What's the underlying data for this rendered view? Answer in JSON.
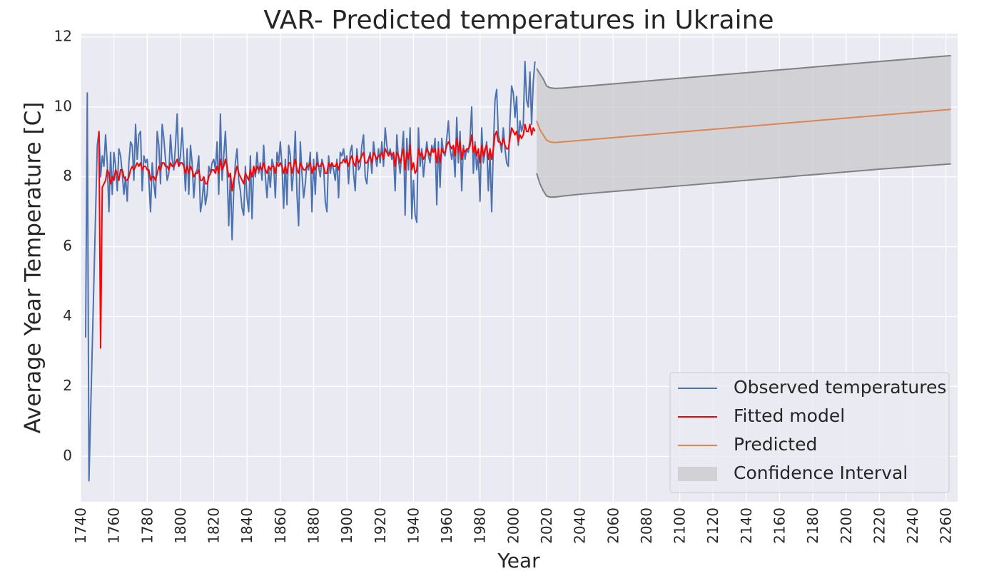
{
  "chart_data": {
    "type": "line",
    "title": "VAR- Predicted temperatures in Ukraine",
    "xlabel": "Year",
    "ylabel": "Average Year Temperature [C]",
    "xlim": [
      1740,
      2267
    ],
    "ylim": [
      -1.3,
      12.1
    ],
    "xticks": [
      1740,
      1760,
      1780,
      1800,
      1820,
      1840,
      1860,
      1880,
      1900,
      1920,
      1940,
      1960,
      1980,
      2000,
      2020,
      2040,
      2060,
      2080,
      2100,
      2120,
      2140,
      2160,
      2180,
      2200,
      2220,
      2240,
      2260
    ],
    "yticks": [
      0,
      2,
      4,
      6,
      8,
      10,
      12
    ],
    "grid": true,
    "legend": "lower right",
    "series": [
      {
        "name": "Observed temperatures",
        "color": "#4c72b0",
        "x": [
          1743,
          1744,
          1745,
          1750,
          1751,
          1752,
          1753,
          1754,
          1755,
          1756,
          1757,
          1758,
          1759,
          1760,
          1761,
          1762,
          1763,
          1764,
          1765,
          1766,
          1767,
          1768,
          1769,
          1770,
          1771,
          1772,
          1773,
          1774,
          1775,
          1776,
          1777,
          1778,
          1779,
          1780,
          1781,
          1782,
          1783,
          1784,
          1785,
          1786,
          1787,
          1788,
          1789,
          1790,
          1791,
          1792,
          1793,
          1794,
          1795,
          1796,
          1797,
          1798,
          1799,
          1800,
          1801,
          1802,
          1803,
          1804,
          1805,
          1806,
          1807,
          1808,
          1809,
          1810,
          1811,
          1812,
          1813,
          1814,
          1815,
          1816,
          1817,
          1818,
          1819,
          1820,
          1821,
          1822,
          1823,
          1824,
          1825,
          1826,
          1827,
          1828,
          1829,
          1830,
          1831,
          1832,
          1833,
          1834,
          1835,
          1836,
          1837,
          1838,
          1839,
          1840,
          1841,
          1842,
          1843,
          1844,
          1845,
          1846,
          1847,
          1848,
          1849,
          1850,
          1851,
          1852,
          1853,
          1854,
          1855,
          1856,
          1857,
          1858,
          1859,
          1860,
          1861,
          1862,
          1863,
          1864,
          1865,
          1866,
          1867,
          1868,
          1869,
          1870,
          1871,
          1872,
          1873,
          1874,
          1875,
          1876,
          1877,
          1878,
          1879,
          1880,
          1881,
          1882,
          1883,
          1884,
          1885,
          1886,
          1887,
          1888,
          1889,
          1890,
          1891,
          1892,
          1893,
          1894,
          1895,
          1896,
          1897,
          1898,
          1899,
          1900,
          1901,
          1902,
          1903,
          1904,
          1905,
          1906,
          1907,
          1908,
          1909,
          1910,
          1911,
          1912,
          1913,
          1914,
          1915,
          1916,
          1917,
          1918,
          1919,
          1920,
          1921,
          1922,
          1923,
          1924,
          1925,
          1926,
          1927,
          1928,
          1929,
          1930,
          1931,
          1932,
          1933,
          1934,
          1935,
          1936,
          1937,
          1938,
          1939,
          1940,
          1941,
          1942,
          1943,
          1944,
          1945,
          1946,
          1947,
          1948,
          1949,
          1950,
          1951,
          1952,
          1953,
          1954,
          1955,
          1956,
          1957,
          1958,
          1959,
          1960,
          1961,
          1962,
          1963,
          1964,
          1965,
          1966,
          1967,
          1968,
          1969,
          1970,
          1971,
          1972,
          1973,
          1974,
          1975,
          1976,
          1977,
          1978,
          1979,
          1980,
          1981,
          1982,
          1983,
          1984,
          1985,
          1986,
          1987,
          1988,
          1989,
          1990,
          1991,
          1992,
          1993,
          1994,
          1995,
          1996,
          1997,
          1998,
          1999,
          2000,
          2001,
          2002,
          2003,
          2004,
          2005,
          2006,
          2007,
          2008,
          2009,
          2010,
          2011,
          2012,
          2013
        ],
        "values": [
          3.4,
          10.4,
          -0.7,
          8.9,
          9.3,
          8.0,
          8.6,
          8.3,
          9.2,
          8.4,
          7.0,
          8.7,
          7.5,
          8.7,
          8.3,
          7.6,
          8.8,
          8.6,
          8.1,
          7.5,
          8.0,
          7.3,
          8.4,
          9.0,
          8.9,
          7.9,
          9.5,
          8.5,
          9.2,
          9.3,
          7.6,
          8.6,
          8.4,
          8.5,
          7.9,
          7.0,
          8.4,
          7.8,
          7.4,
          9.3,
          8.9,
          7.8,
          9.5,
          9.1,
          8.5,
          7.9,
          8.1,
          9.2,
          8.5,
          8.2,
          8.9,
          9.8,
          8.3,
          8.6,
          9.4,
          8.5,
          7.6,
          8.8,
          7.5,
          8.9,
          8.4,
          7.4,
          8.1,
          8.2,
          8.6,
          7.0,
          7.3,
          7.9,
          7.2,
          7.5,
          8.3,
          8.1,
          8.4,
          8.5,
          8.2,
          9.0,
          7.5,
          9.8,
          7.9,
          8.6,
          9.3,
          8.2,
          6.6,
          8.1,
          6.2,
          7.6,
          8.4,
          8.8,
          7.9,
          7.6,
          7.1,
          6.9,
          8.3,
          7.4,
          7.0,
          8.6,
          6.8,
          8.3,
          8.0,
          8.7,
          8.1,
          8.4,
          7.9,
          8.9,
          8.0,
          7.4,
          8.2,
          7.7,
          8.5,
          8.3,
          7.4,
          8.7,
          8.4,
          9.0,
          8.3,
          7.1,
          8.5,
          7.2,
          8.9,
          8.6,
          7.6,
          8.2,
          9.3,
          7.5,
          6.6,
          9.0,
          8.1,
          7.4,
          7.8,
          8.4,
          8.2,
          8.7,
          7.0,
          8.5,
          7.5,
          8.7,
          8.3,
          8.0,
          8.5,
          8.3,
          7.3,
          7.0,
          8.6,
          8.1,
          8.4,
          8.2,
          7.9,
          8.5,
          7.4,
          8.7,
          8.6,
          8.8,
          8.4,
          8.6,
          7.8,
          8.7,
          8.9,
          8.1,
          7.6,
          8.8,
          8.2,
          8.3,
          8.9,
          9.2,
          8.0,
          7.8,
          8.5,
          8.7,
          8.1,
          9.0,
          8.6,
          8.3,
          8.8,
          8.4,
          9.0,
          8.3,
          9.4,
          8.9,
          8.6,
          8.8,
          8.5,
          8.6,
          7.6,
          9.2,
          8.5,
          8.1,
          8.7,
          9.3,
          6.9,
          9.1,
          8.2,
          9.4,
          6.8,
          7.9,
          6.9,
          6.7,
          9.4,
          8.3,
          8.8,
          8.0,
          8.5,
          9.0,
          8.6,
          8.4,
          8.9,
          8.7,
          9.1,
          7.2,
          9.0,
          7.7,
          9.1,
          8.7,
          8.6,
          9.1,
          9.6,
          8.8,
          8.5,
          8.8,
          8.0,
          9.7,
          8.4,
          9.3,
          7.6,
          8.9,
          8.5,
          8.8,
          8.7,
          9.1,
          10.0,
          8.1,
          9.0,
          8.2,
          8.6,
          7.3,
          9.4,
          8.4,
          8.7,
          9.0,
          7.6,
          8.7,
          7.0,
          8.8,
          10.2,
          10.5,
          9.2,
          9.0,
          8.7,
          9.4,
          8.8,
          8.4,
          8.3,
          9.6,
          10.6,
          10.4,
          9.7,
          10.3,
          8.9,
          9.6,
          9.3,
          9.5,
          11.3,
          10.2,
          10.0,
          11.0,
          9.5,
          10.7,
          11.3
        ]
      },
      {
        "name": "Fitted model",
        "color": "#ff0000",
        "x": [
          1751,
          1752,
          1753,
          1754,
          1755,
          1756,
          1757,
          1758,
          1759,
          1760,
          1761,
          1762,
          1763,
          1764,
          1765,
          1766,
          1767,
          1768,
          1769,
          1770,
          1771,
          1772,
          1773,
          1774,
          1775,
          1776,
          1777,
          1778,
          1779,
          1780,
          1781,
          1782,
          1783,
          1784,
          1785,
          1786,
          1787,
          1788,
          1789,
          1790,
          1791,
          1792,
          1793,
          1794,
          1795,
          1796,
          1797,
          1798,
          1799,
          1800,
          1801,
          1802,
          1803,
          1804,
          1805,
          1806,
          1807,
          1808,
          1809,
          1810,
          1811,
          1812,
          1813,
          1814,
          1815,
          1816,
          1817,
          1818,
          1819,
          1820,
          1821,
          1822,
          1823,
          1824,
          1825,
          1826,
          1827,
          1828,
          1829,
          1830,
          1831,
          1832,
          1833,
          1834,
          1835,
          1836,
          1837,
          1838,
          1839,
          1840,
          1841,
          1842,
          1843,
          1844,
          1845,
          1846,
          1847,
          1848,
          1849,
          1850,
          1851,
          1852,
          1853,
          1854,
          1855,
          1856,
          1857,
          1858,
          1859,
          1860,
          1861,
          1862,
          1863,
          1864,
          1865,
          1866,
          1867,
          1868,
          1869,
          1870,
          1871,
          1872,
          1873,
          1874,
          1875,
          1876,
          1877,
          1878,
          1879,
          1880,
          1881,
          1882,
          1883,
          1884,
          1885,
          1886,
          1887,
          1888,
          1889,
          1890,
          1891,
          1892,
          1893,
          1894,
          1895,
          1896,
          1897,
          1898,
          1899,
          1900,
          1901,
          1902,
          1903,
          1904,
          1905,
          1906,
          1907,
          1908,
          1909,
          1910,
          1911,
          1912,
          1913,
          1914,
          1915,
          1916,
          1917,
          1918,
          1919,
          1920,
          1921,
          1922,
          1923,
          1924,
          1925,
          1926,
          1927,
          1928,
          1929,
          1930,
          1931,
          1932,
          1933,
          1934,
          1935,
          1936,
          1937,
          1938,
          1939,
          1940,
          1941,
          1942,
          1943,
          1944,
          1945,
          1946,
          1947,
          1948,
          1949,
          1950,
          1951,
          1952,
          1953,
          1954,
          1955,
          1956,
          1957,
          1958,
          1959,
          1960,
          1961,
          1962,
          1963,
          1964,
          1965,
          1966,
          1967,
          1968,
          1969,
          1970,
          1971,
          1972,
          1973,
          1974,
          1975,
          1976,
          1977,
          1978,
          1979,
          1980,
          1981,
          1982,
          1983,
          1984,
          1985,
          1986,
          1987,
          1988,
          1989,
          1990,
          1991,
          1992,
          1993,
          1994,
          1995,
          1996,
          1997,
          1998,
          1999,
          2000,
          2001,
          2002,
          2003,
          2004,
          2005,
          2006,
          2007,
          2008,
          2009,
          2010,
          2011,
          2012,
          2013
        ],
        "values": [
          9.3,
          3.1,
          7.7,
          7.8,
          7.9,
          8.2,
          8.1,
          7.8,
          8.0,
          7.9,
          8.2,
          8.1,
          7.9,
          8.2,
          8.2,
          8.0,
          7.9,
          7.9,
          8.0,
          8.2,
          8.3,
          8.2,
          8.3,
          8.4,
          8.3,
          8.4,
          8.2,
          8.3,
          8.3,
          8.2,
          8.2,
          7.9,
          8.0,
          8.0,
          7.9,
          8.1,
          8.3,
          8.2,
          8.4,
          8.4,
          8.3,
          8.3,
          8.2,
          8.4,
          8.3,
          8.3,
          8.4,
          8.5,
          8.3,
          8.4,
          8.4,
          8.3,
          8.1,
          8.3,
          8.1,
          8.3,
          8.2,
          8.0,
          8.1,
          8.1,
          8.2,
          7.9,
          7.9,
          8.0,
          7.8,
          7.8,
          8.0,
          8.1,
          8.2,
          8.2,
          8.1,
          8.3,
          8.1,
          8.5,
          8.2,
          8.3,
          8.5,
          8.3,
          8.0,
          8.1,
          7.6,
          7.9,
          8.1,
          8.3,
          8.1,
          8.0,
          7.9,
          7.8,
          8.1,
          8.0,
          7.9,
          8.2,
          8.0,
          8.3,
          8.1,
          8.3,
          8.2,
          8.3,
          8.2,
          8.4,
          8.2,
          8.1,
          8.3,
          8.2,
          8.3,
          8.3,
          8.1,
          8.4,
          8.3,
          8.4,
          8.3,
          8.1,
          8.3,
          8.1,
          8.4,
          8.4,
          8.1,
          8.3,
          8.5,
          8.2,
          8.1,
          8.4,
          8.3,
          8.2,
          8.2,
          8.3,
          8.3,
          8.4,
          8.1,
          8.3,
          8.2,
          8.4,
          8.3,
          8.3,
          8.4,
          8.3,
          8.1,
          8.1,
          8.4,
          8.3,
          8.4,
          8.3,
          8.3,
          8.4,
          8.2,
          8.4,
          8.4,
          8.5,
          8.4,
          8.5,
          8.3,
          8.5,
          8.6,
          8.4,
          8.3,
          8.6,
          8.4,
          8.5,
          8.6,
          8.7,
          8.4,
          8.4,
          8.5,
          8.6,
          8.4,
          8.7,
          8.6,
          8.5,
          8.6,
          8.6,
          8.7,
          8.5,
          8.8,
          8.7,
          8.6,
          8.7,
          8.6,
          8.7,
          8.3,
          8.7,
          8.6,
          8.4,
          8.6,
          8.8,
          8.2,
          8.7,
          8.5,
          8.9,
          8.2,
          8.4,
          8.1,
          8.2,
          8.8,
          8.6,
          8.7,
          8.5,
          8.6,
          8.8,
          8.7,
          8.6,
          8.8,
          8.7,
          8.8,
          8.4,
          8.8,
          8.4,
          8.8,
          8.7,
          8.7,
          8.9,
          9.0,
          8.9,
          8.8,
          8.9,
          8.6,
          9.1,
          8.7,
          9.0,
          8.5,
          8.8,
          8.7,
          8.8,
          8.8,
          8.9,
          9.2,
          8.7,
          8.9,
          8.6,
          8.8,
          8.4,
          8.9,
          8.6,
          8.8,
          8.9,
          8.5,
          8.8,
          8.5,
          8.8,
          9.2,
          9.3,
          9.0,
          9.0,
          8.9,
          9.1,
          8.9,
          8.8,
          8.8,
          9.1,
          9.4,
          9.3,
          9.2,
          9.3,
          9.0,
          9.2,
          9.1,
          9.2,
          9.5,
          9.3,
          9.3,
          9.5,
          9.2,
          9.4,
          9.3
        ]
      },
      {
        "name": "Predicted",
        "color": "#dd8452",
        "x": [
          2014,
          2016,
          2018,
          2020,
          2022,
          2025,
          2030,
          2040,
          2060,
          2100,
          2140,
          2180,
          2220,
          2263
        ],
        "values": [
          9.6,
          9.35,
          9.2,
          9.05,
          9.0,
          8.98,
          9.0,
          9.04,
          9.12,
          9.28,
          9.44,
          9.6,
          9.76,
          9.93
        ]
      }
    ],
    "confidence_interval": {
      "name": "Confidence Interval",
      "color": "#c8c8cc",
      "line_color": "#808080",
      "x": [
        2014,
        2016,
        2018,
        2020,
        2022,
        2025,
        2030,
        2040,
        2060,
        2100,
        2140,
        2180,
        2220,
        2263
      ],
      "lower": [
        8.1,
        7.8,
        7.6,
        7.45,
        7.42,
        7.42,
        7.45,
        7.5,
        7.58,
        7.74,
        7.9,
        8.06,
        8.22,
        8.37
      ],
      "upper": [
        11.1,
        10.95,
        10.8,
        10.6,
        10.55,
        10.53,
        10.54,
        10.58,
        10.66,
        10.82,
        10.98,
        11.14,
        11.3,
        11.47
      ]
    }
  }
}
